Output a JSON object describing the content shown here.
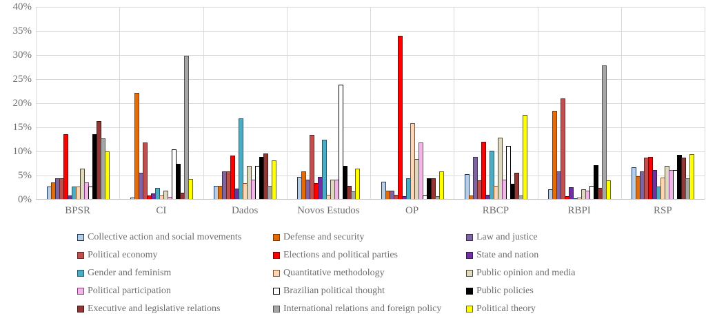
{
  "chart_data": {
    "type": "bar",
    "title": "",
    "xlabel": "",
    "ylabel": "",
    "ylim": [
      0,
      40
    ],
    "ytick_values": [
      0,
      5,
      10,
      15,
      20,
      25,
      30,
      35,
      40
    ],
    "ytick_labels": [
      "0%",
      "5%",
      "10%",
      "15%",
      "20%",
      "25%",
      "30%",
      "35%",
      "40%"
    ],
    "grid": true,
    "legend_position": "bottom",
    "categories": [
      "BPSR",
      "CI",
      "Dados",
      "Novos Estudos",
      "OP",
      "RBCP",
      "RBPI",
      "RSP"
    ],
    "series": [
      {
        "name": "Collective action and social movements",
        "color": "#B9CDE5",
        "border": "#17375E",
        "values": [
          2.7,
          0.4,
          2.9,
          4.7,
          3.7,
          5.3,
          2.1,
          6.7
        ]
      },
      {
        "name": "Defense and security",
        "color": "#E36C0A",
        "border": "#7F3B00",
        "values": [
          3.6,
          22.2,
          2.9,
          5.8,
          1.9,
          0.9,
          18.4,
          4.8
        ]
      },
      {
        "name": "Law and justice",
        "color": "#8064A2",
        "border": "#3F3151",
        "values": [
          4.5,
          5.6,
          5.8,
          4.1,
          1.9,
          8.8,
          5.9,
          5.9
        ]
      },
      {
        "name": "Political economy",
        "color": "#C0504D",
        "border": "#632423",
        "values": [
          4.5,
          11.9,
          5.8,
          13.4,
          1.0,
          4.0,
          21.0,
          8.7
        ]
      },
      {
        "name": "Elections and political parties",
        "color": "#FF0000",
        "border": "#7F0000",
        "values": [
          13.6,
          0.9,
          9.2,
          3.5,
          34.0,
          12.0,
          0.7,
          8.9
        ]
      },
      {
        "name": "State and nation",
        "color": "#7030A0",
        "border": "#381850",
        "values": [
          0.9,
          1.3,
          2.3,
          4.7,
          0.7,
          1.0,
          2.6,
          6.2
        ]
      },
      {
        "name": "Gender and feminism",
        "color": "#4BACC6",
        "border": "#215968",
        "values": [
          2.7,
          2.4,
          16.9,
          12.5,
          4.4,
          10.2,
          0.3,
          2.7
        ]
      },
      {
        "name": "Quantitative methodology",
        "color": "#FBD5B5",
        "border": "#7F4F21",
        "values": [
          2.7,
          0.9,
          3.5,
          1.0,
          15.9,
          2.9,
          0.5,
          4.6
        ]
      },
      {
        "name": "Public opinion and media",
        "color": "#DDD9C3",
        "border": "#4A452A",
        "values": [
          6.4,
          1.9,
          7.0,
          4.1,
          8.5,
          12.9,
          2.1,
          7.0
        ]
      },
      {
        "name": "Political participation",
        "color": "#F0B6E8",
        "border": "#7D3C78",
        "values": [
          3.6,
          0.6,
          4.1,
          4.1,
          11.9,
          4.2,
          1.9,
          6.1
        ]
      },
      {
        "name": "Brazilian political thought",
        "color": "#FFFFFF",
        "border": "#000000",
        "values": [
          2.7,
          10.4,
          7.0,
          23.8,
          0.9,
          11.2,
          2.9,
          6.1
        ]
      },
      {
        "name": "Public policies",
        "color": "#000000",
        "border": "#000000",
        "values": [
          13.6,
          7.4,
          8.8,
          7.0,
          4.5,
          3.3,
          7.1,
          9.3
        ]
      },
      {
        "name": "Executive and legislative relations",
        "color": "#943634",
        "border": "#3E1414",
        "values": [
          16.3,
          1.5,
          9.6,
          2.9,
          4.5,
          5.6,
          2.4,
          8.7
        ]
      },
      {
        "name": "International relations and foreign policy",
        "color": "#A6A6A6",
        "border": "#545454",
        "values": [
          12.7,
          29.9,
          2.9,
          1.7,
          0.7,
          0.9,
          27.8,
          4.5
        ]
      },
      {
        "name": "Political theory",
        "color": "#FFFF00",
        "border": "#666600",
        "values": [
          10.0,
          4.3,
          8.1,
          6.5,
          5.9,
          17.6,
          4.0,
          9.4
        ]
      }
    ]
  }
}
